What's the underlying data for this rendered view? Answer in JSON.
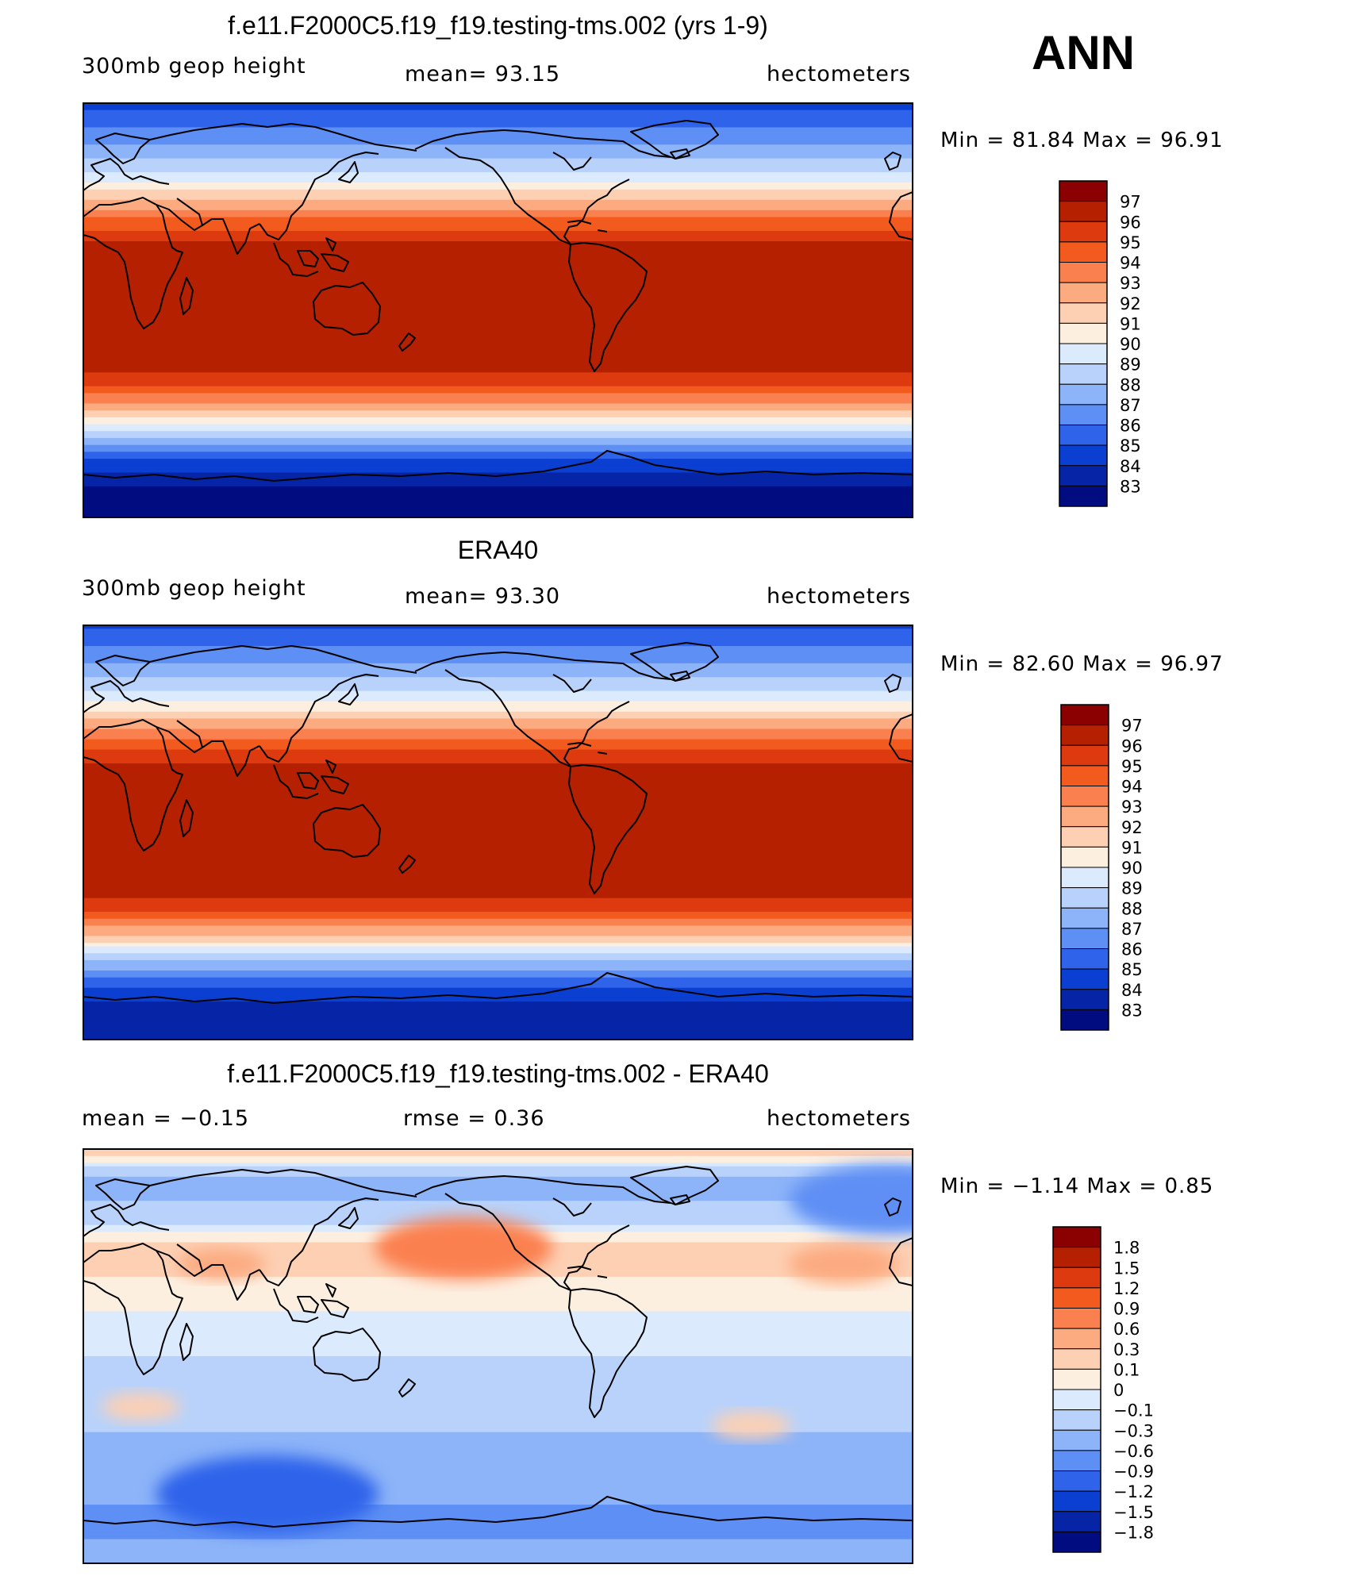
{
  "ann_label": "ANN",
  "panels": [
    {
      "title": "f.e11.F2000C5.f19_f19.testing-tms.002 (yrs 1-9)",
      "left": "300mb geop height",
      "center": "mean=   93.15",
      "right": "hectometers",
      "minmax": "Min =   81.84 Max =   96.91"
    },
    {
      "title": "ERA40",
      "left": "300mb geop height",
      "center": "mean=   93.30",
      "right": "hectometers",
      "minmax": "Min =   82.60 Max =   96.97"
    },
    {
      "title": "f.e11.F2000C5.f19_f19.testing-tms.002 - ERA40",
      "left": "mean =   −0.15",
      "center": "rmse =    0.36",
      "right": "hectometers",
      "minmax": "Min =   −1.14 Max =    0.85"
    }
  ],
  "chart_data": [
    {
      "type": "heatmap",
      "title": "f.e11.F2000C5.f19_f19.testing-tms.002 (yrs 1-9)",
      "variable": "300mb geop height",
      "units": "hectometers",
      "mean": 93.15,
      "min": 81.84,
      "max": 96.91,
      "colorbar": {
        "labels": [
          "97",
          "96",
          "95",
          "94",
          "93",
          "92",
          "91",
          "90",
          "89",
          "88",
          "87",
          "86",
          "85",
          "84",
          "83"
        ],
        "colors": [
          "#8b0000",
          "#b52000",
          "#dd3a10",
          "#f25a1e",
          "#fb8050",
          "#fcaa80",
          "#fdd0b4",
          "#fdefe0",
          "#dbeafc",
          "#b8d2fb",
          "#8db4f8",
          "#5e8ff4",
          "#2f63ea",
          "#0b3fd2",
          "#0625a6",
          "#010c80"
        ]
      },
      "zonal_profile_hm": [
        {
          "lat": 90,
          "value": 84.5
        },
        {
          "lat": 75,
          "value": 86.5
        },
        {
          "lat": 60,
          "value": 89.0
        },
        {
          "lat": 50,
          "value": 91.5
        },
        {
          "lat": 40,
          "value": 94.0
        },
        {
          "lat": 30,
          "value": 96.0
        },
        {
          "lat": 0,
          "value": 96.8
        },
        {
          "lat": -25,
          "value": 96.5
        },
        {
          "lat": -35,
          "value": 94.5
        },
        {
          "lat": -45,
          "value": 91.5
        },
        {
          "lat": -55,
          "value": 88.0
        },
        {
          "lat": -65,
          "value": 85.0
        },
        {
          "lat": -80,
          "value": 82.5
        }
      ]
    },
    {
      "type": "heatmap",
      "title": "ERA40",
      "variable": "300mb geop height",
      "units": "hectometers",
      "mean": 93.3,
      "min": 82.6,
      "max": 96.97,
      "colorbar": {
        "labels": [
          "97",
          "96",
          "95",
          "94",
          "93",
          "92",
          "91",
          "90",
          "89",
          "88",
          "87",
          "86",
          "85",
          "84",
          "83"
        ],
        "colors": [
          "#8b0000",
          "#b52000",
          "#dd3a10",
          "#f25a1e",
          "#fb8050",
          "#fcaa80",
          "#fdd0b4",
          "#fdefe0",
          "#dbeafc",
          "#b8d2fb",
          "#8db4f8",
          "#5e8ff4",
          "#2f63ea",
          "#0b3fd2",
          "#0625a6",
          "#010c80"
        ]
      },
      "zonal_profile_hm": [
        {
          "lat": 90,
          "value": 84.8
        },
        {
          "lat": 75,
          "value": 86.8
        },
        {
          "lat": 60,
          "value": 89.3
        },
        {
          "lat": 50,
          "value": 91.8
        },
        {
          "lat": 40,
          "value": 94.2
        },
        {
          "lat": 30,
          "value": 96.1
        },
        {
          "lat": 0,
          "value": 96.8
        },
        {
          "lat": -25,
          "value": 96.6
        },
        {
          "lat": -35,
          "value": 94.8
        },
        {
          "lat": -45,
          "value": 91.8
        },
        {
          "lat": -55,
          "value": 88.3
        },
        {
          "lat": -65,
          "value": 85.3
        },
        {
          "lat": -80,
          "value": 83.0
        }
      ]
    },
    {
      "type": "heatmap",
      "title": "f.e11.F2000C5.f19_f19.testing-tms.002 - ERA40",
      "units": "hectometers",
      "mean": -0.15,
      "rmse": 0.36,
      "min": -1.14,
      "max": 0.85,
      "colorbar": {
        "labels": [
          "1.8",
          "1.5",
          "1.2",
          "0.9",
          "0.6",
          "0.3",
          "0.1",
          "0",
          "−0.1",
          "−0.3",
          "−0.6",
          "−0.9",
          "−1.2",
          "−1.5",
          "−1.8"
        ],
        "colors": [
          "#8b0000",
          "#b52000",
          "#dd3a10",
          "#f25a1e",
          "#fb8050",
          "#fcaa80",
          "#fdd0b4",
          "#fdefe0",
          "#dbeafc",
          "#b8d2fb",
          "#8db4f8",
          "#5e8ff4",
          "#2f63ea",
          "#0b3fd2",
          "#0625a6",
          "#010c80"
        ]
      },
      "zonal_profile_hm": [
        {
          "lat": 90,
          "value": 0.25
        },
        {
          "lat": 75,
          "value": -0.4
        },
        {
          "lat": 60,
          "value": -0.2
        },
        {
          "lat": 45,
          "value": 0.25
        },
        {
          "lat": 30,
          "value": 0.05
        },
        {
          "lat": 10,
          "value": -0.05
        },
        {
          "lat": -10,
          "value": -0.15
        },
        {
          "lat": -25,
          "value": -0.2
        },
        {
          "lat": -45,
          "value": -0.45
        },
        {
          "lat": -60,
          "value": -0.55
        },
        {
          "lat": -75,
          "value": -0.7
        },
        {
          "lat": -85,
          "value": -0.5
        }
      ],
      "anomalies": [
        {
          "name": "north-pacific-positive",
          "lon": 165,
          "lat": 47,
          "value": 0.8
        },
        {
          "name": "north-atlantic-positive",
          "lon": -30,
          "lat": 40,
          "value": 0.5
        },
        {
          "name": "central-asia-positive",
          "lon": 60,
          "lat": 40,
          "value": 0.4
        },
        {
          "name": "greenland-sea-negative",
          "lon": -10,
          "lat": 68,
          "value": -0.9
        },
        {
          "name": "southern-ocean-negative",
          "lon": 80,
          "lat": -60,
          "value": -1.0
        },
        {
          "name": "south-africa-positive",
          "lon": 25,
          "lat": -22,
          "value": 0.2
        },
        {
          "name": "southeast-pacific-positive",
          "lon": -70,
          "lat": -30,
          "value": 0.2
        }
      ]
    }
  ]
}
